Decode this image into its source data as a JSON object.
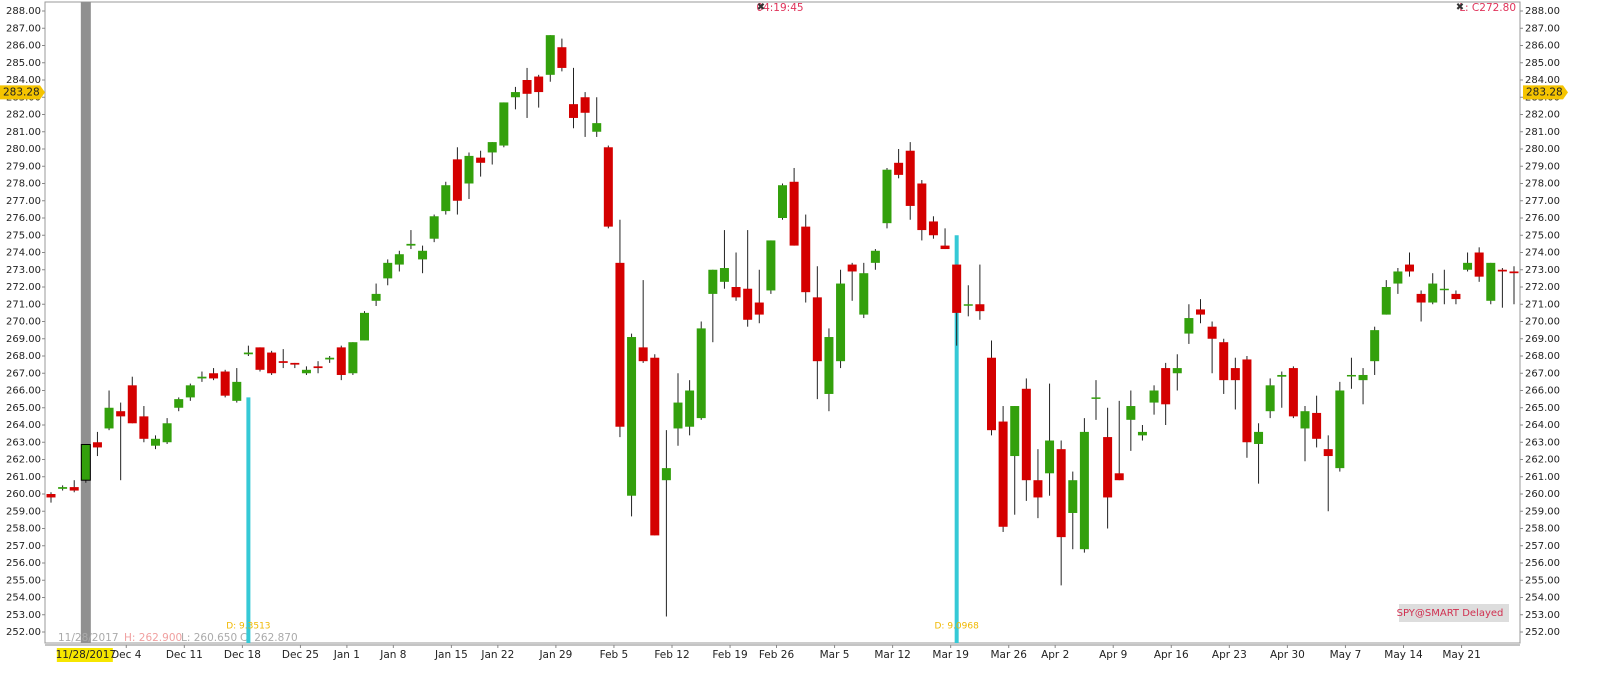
{
  "chart_data": {
    "type": "candlestick",
    "time_label": "04:19:45",
    "last_label": "L: C272.80",
    "badge": "SPY@SMART Delayed",
    "current_price": 283.28,
    "crosshair": {
      "date": "11/28/2017",
      "high": "H: 262.900",
      "low": "L: 260.650",
      "close": "C: 262.870"
    },
    "annotations": [
      "D: 9.3513",
      "D: 9.0968"
    ],
    "up_color": "#33a00c",
    "down_color": "#d40000",
    "ylim": [
      252,
      288
    ],
    "yticks": [
      {
        "value": 252,
        "label": "252.00"
      },
      {
        "value": 253,
        "label": "253.00"
      },
      {
        "value": 254,
        "label": "254.00"
      },
      {
        "value": 255,
        "label": "255.00"
      },
      {
        "value": 256,
        "label": "256.00"
      },
      {
        "value": 257,
        "label": "257.00"
      },
      {
        "value": 258,
        "label": "258.00"
      },
      {
        "value": 259,
        "label": "259.00"
      },
      {
        "value": 260,
        "label": "260.00"
      },
      {
        "value": 261,
        "label": "261.00"
      },
      {
        "value": 262,
        "label": "262.00"
      },
      {
        "value": 263,
        "label": "263.00"
      },
      {
        "value": 264,
        "label": "264.00"
      },
      {
        "value": 265,
        "label": "265.00"
      },
      {
        "value": 266,
        "label": "266.00"
      },
      {
        "value": 267,
        "label": "267.00"
      },
      {
        "value": 268,
        "label": "268.00"
      },
      {
        "value": 269,
        "label": "269.00"
      },
      {
        "value": 270,
        "label": "270.00"
      },
      {
        "value": 271,
        "label": "271.00"
      },
      {
        "value": 272,
        "label": "272.00"
      },
      {
        "value": 273,
        "label": "273.00"
      },
      {
        "value": 274,
        "label": "274.00"
      },
      {
        "value": 275,
        "label": "275.00"
      },
      {
        "value": 276,
        "label": "276.00"
      },
      {
        "value": 277,
        "label": "277.00"
      },
      {
        "value": 278,
        "label": "278.00"
      },
      {
        "value": 279,
        "label": "279.00"
      },
      {
        "value": 280,
        "label": "280.00"
      },
      {
        "value": 281,
        "label": "281.00"
      },
      {
        "value": 282,
        "label": "282.00"
      },
      {
        "value": 283,
        "label": "283.00"
      },
      {
        "value": 284,
        "label": "284.00"
      },
      {
        "value": 285,
        "label": "285.00"
      },
      {
        "value": 286,
        "label": "286.00"
      },
      {
        "value": 287,
        "label": "287.00"
      },
      {
        "value": 288,
        "label": "288.00"
      }
    ],
    "categories": [
      null,
      null,
      null,
      null,
      null,
      null,
      null,
      "Dec 4",
      null,
      null,
      null,
      null,
      "Dec 11",
      null,
      null,
      null,
      null,
      "Dec 18",
      null,
      null,
      null,
      null,
      "Dec 25",
      null,
      null,
      null,
      "Jan 1",
      null,
      null,
      null,
      "Jan 8",
      null,
      null,
      null,
      null,
      "Jan 15",
      null,
      null,
      null,
      "Jan 22",
      null,
      null,
      null,
      null,
      "Jan 29",
      null,
      null,
      null,
      null,
      "Feb 5",
      null,
      null,
      null,
      null,
      "Feb 12",
      null,
      null,
      null,
      null,
      "Feb 19",
      null,
      null,
      null,
      "Feb 26",
      null,
      null,
      null,
      null,
      "Mar 5",
      null,
      null,
      null,
      null,
      "Mar 12",
      null,
      null,
      null,
      null,
      "Mar 19",
      null,
      null,
      null,
      null,
      "Mar 26",
      null,
      null,
      null,
      "Apr 2",
      null,
      null,
      null,
      null,
      "Apr 9",
      null,
      null,
      null,
      null,
      "Apr 16",
      null,
      null,
      null,
      null,
      "Apr 23",
      null,
      null,
      null,
      null,
      "Apr 30",
      null,
      null,
      null,
      null,
      "May 7",
      null,
      null,
      null,
      null,
      "May 14",
      null,
      null,
      null,
      null,
      "May 21",
      null,
      null,
      null,
      null
    ],
    "open": [
      260.0,
      260.3,
      260.4,
      260.8,
      263.0,
      263.8,
      264.8,
      266.3,
      264.5,
      262.8,
      263.0,
      265.0,
      265.6,
      266.7,
      267.0,
      267.1,
      265.4,
      268.1,
      268.5,
      268.2,
      267.7,
      267.6,
      267.0,
      267.4,
      267.8,
      268.5,
      267.0,
      268.9,
      271.2,
      272.5,
      273.3,
      274.4,
      273.6,
      274.8,
      276.4,
      279.4,
      278.0,
      279.5,
      279.8,
      280.2,
      283.0,
      284.0,
      284.2,
      284.3,
      285.9,
      282.6,
      283.0,
      281.0,
      280.1,
      273.4,
      259.9,
      268.5,
      267.9,
      260.8,
      263.8,
      263.9,
      264.4,
      271.6,
      272.3,
      272.0,
      271.9,
      271.1,
      271.8,
      276.0,
      278.1,
      275.5,
      271.4,
      265.8,
      267.7,
      273.3,
      270.4,
      273.4,
      275.7,
      279.2,
      279.9,
      278.0,
      275.8,
      274.4,
      273.3,
      271.0,
      271.0,
      267.9,
      264.2,
      262.2,
      266.1,
      260.8,
      261.2,
      262.6,
      258.9,
      256.8,
      265.6,
      263.3,
      261.2,
      264.3,
      263.4,
      265.3,
      267.3,
      267.0,
      269.3,
      270.7,
      269.7,
      268.8,
      267.3,
      267.8,
      262.9,
      264.8,
      266.8,
      267.3,
      263.8,
      264.7,
      262.6,
      261.5,
      266.9,
      266.6,
      267.7,
      270.4,
      272.2,
      273.3,
      271.6,
      271.1,
      271.9,
      271.6,
      273.0,
      274.0,
      271.2,
      273.0,
      272.9
    ],
    "high": [
      260.1,
      260.5,
      260.8,
      262.9,
      263.6,
      266.0,
      265.3,
      266.8,
      265.1,
      263.4,
      264.4,
      265.6,
      266.4,
      267.1,
      267.3,
      267.2,
      267.3,
      268.6,
      268.5,
      268.3,
      268.4,
      267.6,
      267.4,
      267.7,
      268.0,
      268.6,
      268.8,
      270.6,
      272.2,
      273.6,
      274.1,
      275.3,
      274.4,
      276.2,
      278.1,
      280.1,
      279.8,
      279.9,
      280.4,
      282.7,
      283.6,
      284.7,
      284.3,
      286.6,
      286.4,
      284.7,
      283.3,
      283.0,
      280.2,
      275.9,
      269.3,
      272.4,
      268.1,
      263.7,
      267.0,
      266.6,
      270.0,
      273.0,
      275.3,
      274.0,
      275.3,
      273.0,
      274.7,
      278.0,
      278.9,
      276.2,
      273.2,
      269.6,
      273.0,
      273.4,
      273.4,
      274.2,
      278.9,
      280.0,
      280.4,
      278.2,
      276.1,
      275.4,
      273.3,
      272.1,
      273.3,
      268.9,
      265.1,
      265.1,
      266.7,
      262.6,
      266.4,
      263.1,
      261.3,
      264.4,
      266.6,
      265.0,
      265.4,
      266.0,
      264.0,
      266.3,
      267.6,
      268.1,
      271.0,
      271.3,
      270.0,
      269.0,
      267.9,
      268.0,
      264.1,
      266.7,
      267.1,
      267.4,
      265.1,
      265.7,
      263.4,
      266.5,
      267.9,
      267.3,
      269.7,
      272.4,
      273.1,
      274.0,
      271.8,
      272.8,
      273.0,
      271.8,
      274.0,
      274.3,
      273.4,
      273.1,
      273.2
    ],
    "low": [
      259.5,
      260.2,
      260.1,
      260.65,
      262.2,
      263.7,
      260.8,
      264.1,
      263.0,
      262.6,
      262.9,
      264.8,
      265.4,
      266.5,
      266.6,
      265.6,
      265.3,
      268.0,
      267.1,
      266.9,
      267.3,
      267.3,
      266.9,
      267.0,
      267.6,
      266.6,
      266.9,
      268.9,
      270.9,
      272.1,
      272.9,
      274.2,
      272.8,
      274.6,
      276.2,
      276.2,
      277.1,
      278.4,
      279.1,
      280.1,
      282.3,
      281.8,
      282.4,
      283.9,
      284.5,
      281.2,
      280.7,
      280.7,
      275.4,
      263.3,
      258.7,
      267.6,
      257.6,
      252.9,
      262.8,
      263.4,
      264.3,
      268.8,
      271.9,
      271.2,
      269.7,
      269.9,
      271.6,
      275.9,
      274.4,
      271.1,
      265.5,
      264.8,
      267.3,
      271.2,
      270.2,
      273.0,
      275.4,
      278.3,
      275.9,
      274.7,
      274.8,
      274.2,
      268.6,
      270.3,
      270.1,
      263.4,
      257.8,
      258.8,
      259.6,
      258.6,
      259.9,
      254.7,
      256.8,
      256.6,
      264.3,
      258.0,
      260.8,
      262.5,
      263.1,
      264.6,
      264.0,
      266.0,
      268.7,
      269.9,
      267.0,
      265.8,
      264.9,
      262.1,
      260.6,
      264.4,
      265.0,
      264.4,
      261.9,
      262.7,
      259.0,
      261.3,
      266.1,
      265.2,
      266.9,
      270.4,
      271.6,
      272.6,
      270.0,
      271.0,
      271.0,
      271.0,
      272.9,
      272.3,
      271.0,
      270.8,
      271.0
    ],
    "close": [
      259.8,
      260.4,
      260.2,
      262.87,
      262.7,
      265.0,
      264.5,
      264.1,
      263.2,
      263.2,
      264.1,
      265.5,
      266.3,
      266.8,
      266.7,
      265.7,
      266.5,
      268.2,
      267.2,
      267.0,
      267.6,
      267.5,
      267.2,
      267.3,
      267.9,
      266.9,
      268.8,
      270.5,
      271.6,
      273.4,
      273.9,
      274.5,
      274.1,
      276.1,
      277.9,
      277.0,
      279.6,
      279.2,
      280.4,
      282.7,
      283.3,
      283.2,
      283.3,
      286.6,
      284.7,
      281.8,
      282.1,
      281.5,
      275.5,
      263.9,
      269.1,
      267.7,
      257.6,
      261.5,
      265.3,
      266.0,
      269.6,
      273.0,
      273.1,
      271.4,
      270.1,
      270.4,
      274.7,
      277.9,
      274.4,
      271.7,
      267.7,
      269.1,
      272.2,
      272.9,
      272.8,
      274.1,
      278.8,
      278.5,
      276.7,
      275.3,
      275.0,
      274.2,
      270.5,
      271.0,
      270.6,
      263.7,
      258.1,
      265.1,
      260.8,
      259.8,
      263.1,
      257.5,
      260.8,
      263.6,
      265.6,
      259.8,
      260.8,
      265.1,
      263.6,
      266.0,
      265.2,
      267.3,
      270.2,
      270.4,
      269.0,
      266.6,
      266.6,
      263.0,
      263.6,
      266.3,
      266.9,
      264.5,
      264.8,
      263.2,
      262.2,
      266.0,
      266.9,
      266.9,
      269.5,
      272.0,
      272.9,
      272.9,
      271.1,
      272.2,
      271.9,
      271.3,
      273.4,
      272.6,
      273.4,
      272.9,
      272.8
    ]
  }
}
